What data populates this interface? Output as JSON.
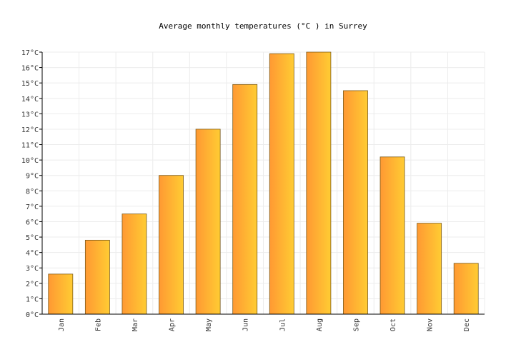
{
  "chart_data": {
    "type": "bar",
    "title": "Average monthly temperatures (°C ) in Surrey",
    "categories": [
      "Jan",
      "Feb",
      "Mar",
      "Apr",
      "May",
      "Jun",
      "Jul",
      "Aug",
      "Sep",
      "Oct",
      "Nov",
      "Dec"
    ],
    "values": [
      2.6,
      4.8,
      6.5,
      9.0,
      12.0,
      14.9,
      16.9,
      17.0,
      14.5,
      10.2,
      5.9,
      3.3
    ],
    "yticks": [
      "0°C",
      "1°C",
      "2°C",
      "3°C",
      "4°C",
      "5°C",
      "6°C",
      "7°C",
      "8°C",
      "9°C",
      "10°C",
      "11°C",
      "12°C",
      "13°C",
      "14°C",
      "15°C",
      "16°C",
      "17°C"
    ],
    "ylim": [
      0,
      17
    ],
    "grid": true,
    "bar_gradient": [
      "#ff9933",
      "#ffcc33"
    ],
    "bar_border": "#7a5a1a"
  }
}
